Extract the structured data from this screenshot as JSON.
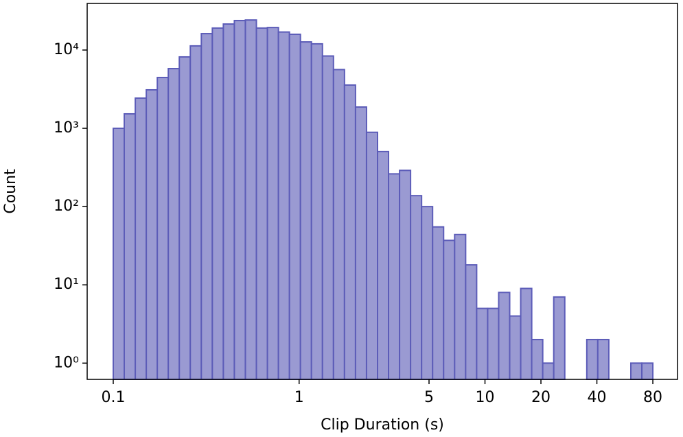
{
  "chart_data": {
    "type": "histogram",
    "xlabel": "Clip Duration (s)",
    "ylabel": "Count",
    "bins": [
      0.1,
      0.1146,
      0.1314,
      0.1506,
      0.1726,
      0.1978,
      0.2267,
      0.2598,
      0.2978,
      0.3413,
      0.3912,
      0.4484,
      0.5139,
      0.5891,
      0.6752,
      0.7739,
      0.887,
      1.0166,
      1.1652,
      1.3356,
      1.5308,
      1.7546,
      2.0111,
      2.305,
      2.642,
      3.028,
      3.471,
      3.978,
      4.56,
      5.226,
      5.99,
      6.866,
      7.87,
      9.02,
      10.339,
      11.85,
      13.582,
      15.567,
      17.843,
      20.45,
      23.44,
      26.87,
      30.79,
      35.3,
      40.45,
      46.37,
      53.15,
      60.92,
      69.82,
      80.0
    ],
    "values": [
      1000,
      1530,
      2430,
      3100,
      4460,
      5790,
      8170,
      11300,
      16200,
      19100,
      21500,
      23800,
      24200,
      19100,
      19400,
      17000,
      15900,
      12700,
      12000,
      8400,
      5630,
      3570,
      1870,
      890,
      505,
      262,
      290,
      138,
      100,
      55,
      37,
      44,
      18,
      5,
      5,
      8,
      4,
      9,
      2,
      1,
      7,
      0,
      0,
      2,
      2,
      0,
      0,
      1,
      1
    ],
    "color": "#9a9ad2",
    "edgecolor": "#5c5cb8",
    "xscale": "log",
    "yscale": "log",
    "xlim": [
      0.0724,
      108.6
    ],
    "ylim": [
      0.62,
      39400
    ],
    "xticks": [
      0.1,
      1,
      5,
      10,
      20,
      40,
      80
    ],
    "yticks": [
      {
        "value": 1,
        "label": "10⁰"
      },
      {
        "value": 10,
        "label": "10¹"
      },
      {
        "value": 100,
        "label": "10²"
      },
      {
        "value": 1000,
        "label": "10³"
      },
      {
        "value": 10000,
        "label": "10⁴"
      }
    ]
  }
}
